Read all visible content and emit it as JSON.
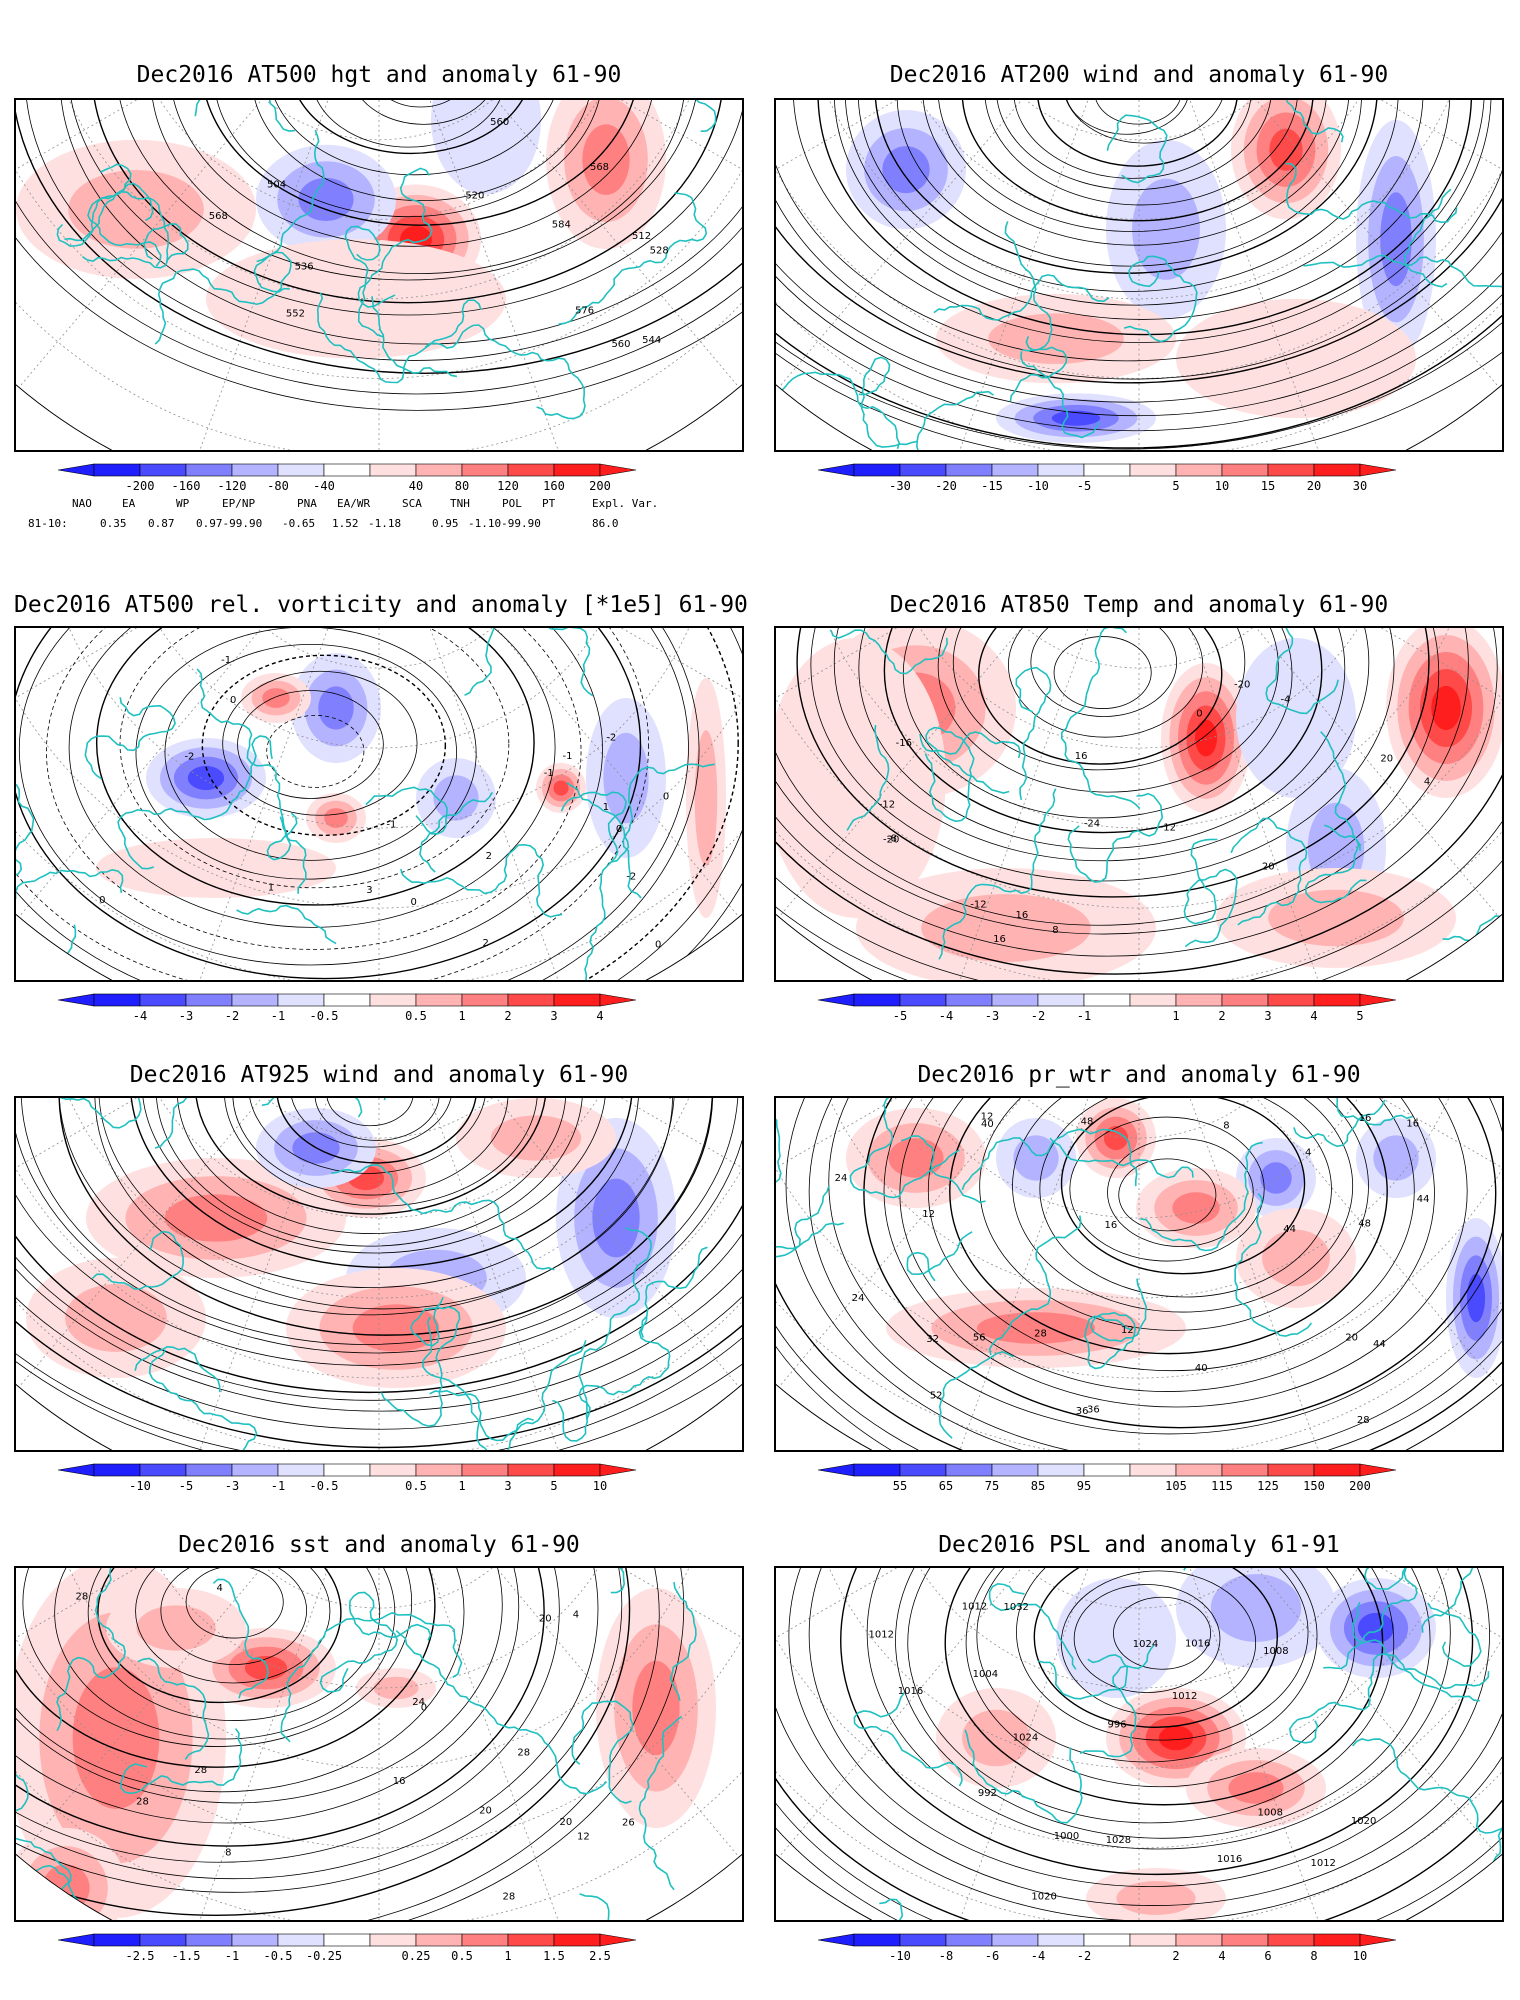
{
  "panels": [
    {
      "id": "p1",
      "title": "Dec2016 AT500 hgt and anomaly 61-90",
      "colorbar_labels": [
        "-200",
        "-160",
        "-120",
        "-80",
        "-40",
        "40",
        "80",
        "120",
        "160",
        "200"
      ],
      "contour_labels": [
        "504",
        "512",
        "520",
        "528",
        "536",
        "544",
        "552",
        "560",
        "560",
        "568",
        "568",
        "576",
        "584"
      ]
    },
    {
      "id": "p2",
      "title": "Dec2016 AT200 wind and anomaly 61-90",
      "colorbar_labels": [
        "-30",
        "-20",
        "-15",
        "-10",
        "-5",
        "5",
        "10",
        "15",
        "20",
        "30"
      ],
      "contour_labels": []
    },
    {
      "id": "p3",
      "title": "Dec2016 AT500 rel. vorticity and anomaly [*1e5] 61-90",
      "colorbar_labels": [
        "-4",
        "-3",
        "-2",
        "-1",
        "-0.5",
        "0.5",
        "1",
        "2",
        "3",
        "4"
      ],
      "contour_labels": [
        "0",
        "0",
        "0",
        "0",
        "-1",
        "-1",
        "-2",
        "-2",
        "1",
        "1",
        "2",
        "3",
        "-1",
        "-1",
        "0",
        "0",
        "-2",
        "2"
      ]
    },
    {
      "id": "p4",
      "title": "Dec2016 AT850 Temp and anomaly 61-90",
      "colorbar_labels": [
        "-5",
        "-4",
        "-3",
        "-2",
        "-1",
        "1",
        "2",
        "3",
        "4",
        "5"
      ],
      "contour_labels": [
        "-20",
        "-24",
        "-16",
        "-12",
        "-8",
        "-4",
        "0",
        "4",
        "8",
        "12",
        "16",
        "16",
        "16",
        "20",
        "20",
        "-20",
        "-12"
      ]
    },
    {
      "id": "p5",
      "title": "Dec2016 AT925 wind and anomaly 61-90",
      "colorbar_labels": [
        "-10",
        "-5",
        "-3",
        "-1",
        "-0.5",
        "0.5",
        "1",
        "3",
        "5",
        "10"
      ],
      "contour_labels": []
    },
    {
      "id": "p6",
      "title": "Dec2016 pr_wtr and anomaly 61-90",
      "colorbar_labels": [
        "55",
        "65",
        "75",
        "85",
        "95",
        "105",
        "115",
        "125",
        "150",
        "200"
      ],
      "contour_labels": [
        "44",
        "44",
        "48",
        "52",
        "56",
        "40",
        "36",
        "32",
        "28",
        "24",
        "20",
        "16",
        "12",
        "8",
        "4",
        "12",
        "16",
        "12",
        "24",
        "28",
        "36",
        "40",
        "44",
        "48",
        "16"
      ]
    },
    {
      "id": "p7",
      "title": "Dec2016 sst and anomaly 61-90",
      "colorbar_labels": [
        "-2.5",
        "-1.5",
        "-1",
        "-0.5",
        "-0.25",
        "0.25",
        "0.5",
        "1",
        "1.5",
        "2.5"
      ],
      "contour_labels": [
        "28",
        "26",
        "24",
        "28",
        "20",
        "16",
        "12",
        "8",
        "4",
        "4",
        "0",
        "20",
        "28",
        "28",
        "28",
        "20"
      ]
    },
    {
      "id": "p8",
      "title": "Dec2016 PSL and anomaly 61-91",
      "colorbar_labels": [
        "-10",
        "-8",
        "-6",
        "-4",
        "-2",
        "2",
        "4",
        "6",
        "8",
        "10"
      ],
      "contour_labels": [
        "1016",
        "1012",
        "1008",
        "1004",
        "1000",
        "996",
        "992",
        "1020",
        "1024",
        "1028",
        "1032",
        "1016",
        "1012",
        "1012",
        "1016",
        "1020",
        "1024",
        "1012",
        "1008"
      ]
    }
  ],
  "indices": {
    "row1_names": [
      "NAO",
      "EA",
      "WP",
      "EP/NP",
      "PNA",
      "EA/WR",
      "SCA",
      "TNH",
      "POL",
      "PT",
      "Expl. Var."
    ],
    "row2_label": "81-10:",
    "row2_values": [
      "0.35",
      "0.87",
      "0.97-99.90",
      "-0.65",
      "1.52",
      "-1.18",
      "0.95",
      "-1.10-99.90",
      "86.0"
    ]
  },
  "colors": {
    "neg": [
      "#1e1eff",
      "#4a4aff",
      "#8080ff",
      "#b3b3ff",
      "#e0e0ff"
    ],
    "pos": [
      "#ffe0e0",
      "#ffb3b3",
      "#ff8080",
      "#ff4a4a",
      "#ff1e1e"
    ],
    "coast": "#20c0c0",
    "grid": "#909090"
  }
}
